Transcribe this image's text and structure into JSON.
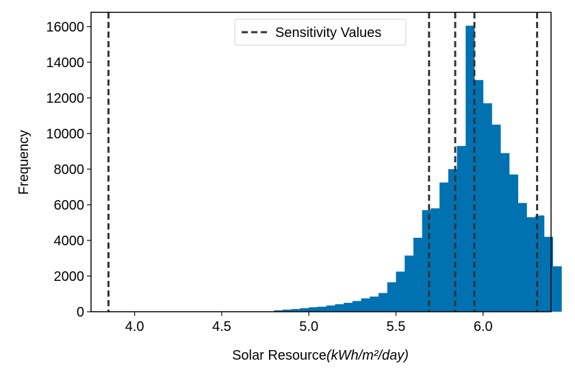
{
  "chart_data": {
    "type": "bar",
    "title": "",
    "xlabel": "Solar Resource",
    "xlabel_unit": "(kWh/m²/day)",
    "ylabel": "Frequency",
    "xlim": [
      3.75,
      6.39
    ],
    "ylim": [
      0,
      16800
    ],
    "x_ticks": [
      4.0,
      4.5,
      5.0,
      5.5,
      6.0
    ],
    "x_tick_labels": [
      "4.0",
      "4.5",
      "5.0",
      "5.5",
      "6.0"
    ],
    "y_ticks": [
      0,
      2000,
      4000,
      6000,
      8000,
      10000,
      12000,
      14000,
      16000
    ],
    "y_tick_labels": [
      "0",
      "2000",
      "4000",
      "6000",
      "8000",
      "10000",
      "12000",
      "14000",
      "16000"
    ],
    "bar_color": "#0072b2",
    "bins": [
      {
        "x0": 4.8,
        "x1": 4.85,
        "count": 80
      },
      {
        "x0": 4.85,
        "x1": 4.9,
        "count": 120
      },
      {
        "x0": 4.9,
        "x1": 4.95,
        "count": 150
      },
      {
        "x0": 4.95,
        "x1": 5.0,
        "count": 200
      },
      {
        "x0": 5.0,
        "x1": 5.05,
        "count": 250
      },
      {
        "x0": 5.05,
        "x1": 5.1,
        "count": 280
      },
      {
        "x0": 5.1,
        "x1": 5.15,
        "count": 350
      },
      {
        "x0": 5.15,
        "x1": 5.2,
        "count": 420
      },
      {
        "x0": 5.2,
        "x1": 5.25,
        "count": 500
      },
      {
        "x0": 5.25,
        "x1": 5.3,
        "count": 600
      },
      {
        "x0": 5.3,
        "x1": 5.35,
        "count": 750
      },
      {
        "x0": 5.35,
        "x1": 5.4,
        "count": 850
      },
      {
        "x0": 5.4,
        "x1": 5.45,
        "count": 1050
      },
      {
        "x0": 5.45,
        "x1": 5.5,
        "count": 1650
      },
      {
        "x0": 5.5,
        "x1": 5.55,
        "count": 2250
      },
      {
        "x0": 5.55,
        "x1": 5.6,
        "count": 3150
      },
      {
        "x0": 5.6,
        "x1": 5.65,
        "count": 4150
      },
      {
        "x0": 5.65,
        "x1": 5.7,
        "count": 5700
      },
      {
        "x0": 5.7,
        "x1": 5.75,
        "count": 5800
      },
      {
        "x0": 5.75,
        "x1": 5.8,
        "count": 7250
      },
      {
        "x0": 5.8,
        "x1": 5.85,
        "count": 8000
      },
      {
        "x0": 5.85,
        "x1": 5.9,
        "count": 9300
      },
      {
        "x0": 5.9,
        "x1": 5.95,
        "count": 16050
      },
      {
        "x0": 5.95,
        "x1": 6.0,
        "count": 13000
      },
      {
        "x0": 6.0,
        "x1": 6.05,
        "count": 11700
      },
      {
        "x0": 6.05,
        "x1": 6.1,
        "count": 10500
      },
      {
        "x0": 6.1,
        "x1": 6.15,
        "count": 8900
      },
      {
        "x0": 6.15,
        "x1": 6.2,
        "count": 7700
      },
      {
        "x0": 6.2,
        "x1": 6.25,
        "count": 6100
      },
      {
        "x0": 6.25,
        "x1": 6.3,
        "count": 5300
      },
      {
        "x0": 6.3,
        "x1": 6.35,
        "count": 5400
      },
      {
        "x0": 6.35,
        "x1": 6.4,
        "count": 4200
      },
      {
        "x0": 6.4,
        "x1": 6.45,
        "count": 2550
      }
    ],
    "sensitivity_lines": [
      3.85,
      5.69,
      5.84,
      5.95,
      6.31
    ],
    "sensitivity_color": "#333333",
    "legend": {
      "label": "Sensitivity Values",
      "placement": "top-center"
    }
  }
}
